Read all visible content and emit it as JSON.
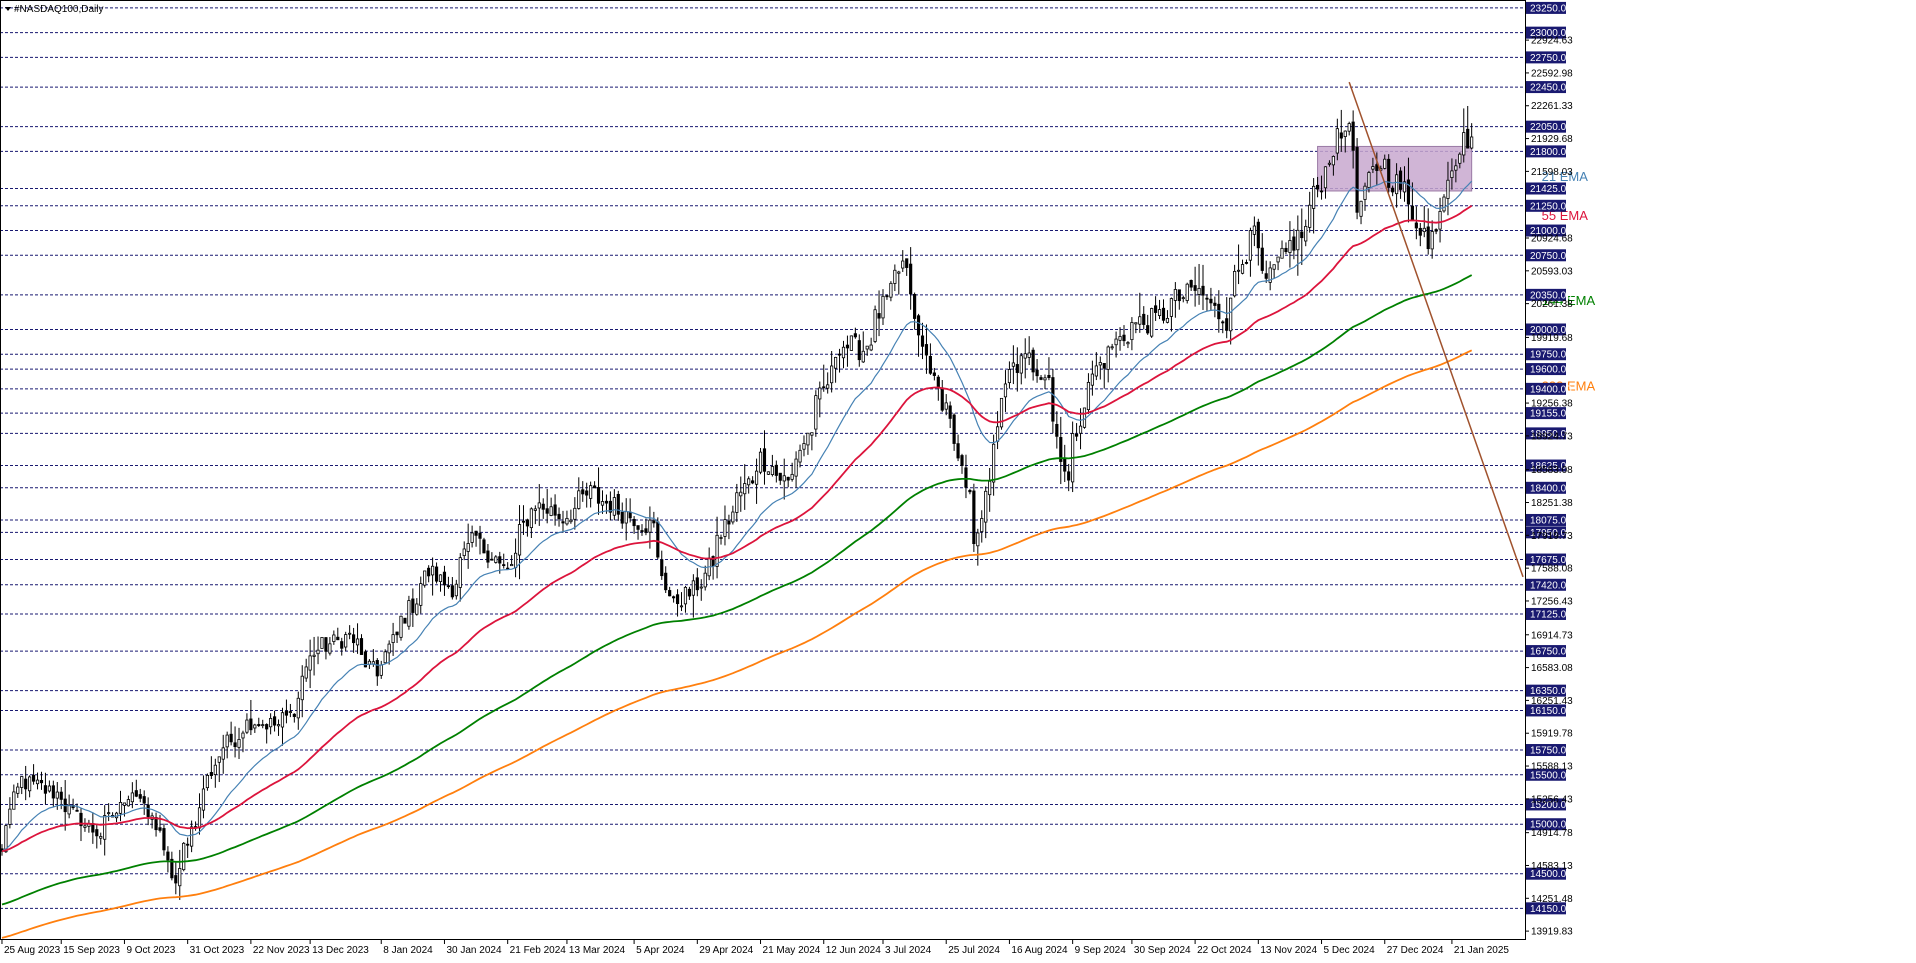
{
  "chart_data": {
    "type": "candlestick",
    "title": "#NASDAQ100,Daily",
    "ylim": [
      13830,
      23330
    ],
    "xlim": [
      "2023-08-25",
      "2025-02-14"
    ],
    "background": "#ffffff",
    "grid": "horizontal at marked levels (dashed)",
    "price_levels": [
      23250,
      23000,
      22750,
      22450,
      22050,
      21800,
      21425,
      21250,
      21000,
      20750,
      20350,
      20000,
      19750,
      19600,
      19400,
      19155,
      18950,
      18625,
      18400,
      18075,
      17950,
      17675,
      17420,
      17125,
      16750,
      16350,
      16150,
      15750,
      15500,
      15200,
      15000,
      14500,
      14150
    ],
    "y_tick_labels": [
      "22924.63",
      "22592.98",
      "22261.33",
      "21929.68",
      "21598.03",
      "20924.68",
      "20593.03",
      "20261.38",
      "19919.68",
      "19256.38",
      "18924.73",
      "18583.08",
      "18251.38",
      "17919.73",
      "17588.08",
      "17256.43",
      "16914.73",
      "16583.08",
      "16251.43",
      "15919.78",
      "15588.13",
      "15256.43",
      "14914.78",
      "14583.13",
      "14251.48",
      "13919.83"
    ],
    "x_tick_labels": [
      "25 Aug 2023",
      "15 Sep 2023",
      "9 Oct 2023",
      "31 Oct 2023",
      "22 Nov 2023",
      "13 Dec 2023",
      "8 Jan 2024",
      "30 Jan 2024",
      "21 Feb 2024",
      "13 Mar 2024",
      "5 Apr 2024",
      "29 Apr 2024",
      "21 May 2024",
      "12 Jun 2024",
      "3 Jul 2024",
      "25 Jul 2024",
      "16 Aug 2024",
      "9 Sep 2024",
      "30 Sep 2024",
      "22 Oct 2024",
      "13 Nov 2024",
      "5 Dec 2024",
      "27 Dec 2024",
      "21 Jan 2025"
    ],
    "close_anchors": [
      [
        "2023-08-25",
        14700
      ],
      [
        "2023-09-01",
        15450
      ],
      [
        "2023-09-15",
        15300
      ],
      [
        "2023-09-20",
        15100
      ],
      [
        "2023-09-29",
        14900
      ],
      [
        "2023-10-11",
        15350
      ],
      [
        "2023-10-20",
        14950
      ],
      [
        "2023-10-26",
        14400
      ],
      [
        "2023-11-02",
        15050
      ],
      [
        "2023-11-10",
        15700
      ],
      [
        "2023-11-22",
        16050
      ],
      [
        "2023-12-01",
        16000
      ],
      [
        "2023-12-06",
        16100
      ],
      [
        "2023-12-14",
        16750
      ],
      [
        "2023-12-27",
        16900
      ],
      [
        "2024-01-05",
        16500
      ],
      [
        "2024-01-12",
        16900
      ],
      [
        "2024-01-24",
        17550
      ],
      [
        "2024-02-01",
        17400
      ],
      [
        "2024-02-09",
        17900
      ],
      [
        "2024-02-21",
        17550
      ],
      [
        "2024-03-01",
        18250
      ],
      [
        "2024-03-12",
        18100
      ],
      [
        "2024-03-21",
        18350
      ],
      [
        "2024-04-02",
        18150
      ],
      [
        "2024-04-12",
        18000
      ],
      [
        "2024-04-19",
        17200
      ],
      [
        "2024-04-30",
        17450
      ],
      [
        "2024-05-10",
        18150
      ],
      [
        "2024-05-21",
        18700
      ],
      [
        "2024-05-30",
        18450
      ],
      [
        "2024-06-07",
        19000
      ],
      [
        "2024-06-18",
        19850
      ],
      [
        "2024-06-26",
        19800
      ],
      [
        "2024-07-10",
        20650
      ],
      [
        "2024-07-17",
        19800
      ],
      [
        "2024-07-26",
        19150
      ],
      [
        "2024-08-05",
        17900
      ],
      [
        "2024-08-09",
        18400
      ],
      [
        "2024-08-16",
        19550
      ],
      [
        "2024-08-23",
        19700
      ],
      [
        "2024-08-30",
        19550
      ],
      [
        "2024-09-06",
        18450
      ],
      [
        "2024-09-13",
        19400
      ],
      [
        "2024-09-20",
        19750
      ],
      [
        "2024-09-30",
        20050
      ],
      [
        "2024-10-08",
        20100
      ],
      [
        "2024-10-15",
        20300
      ],
      [
        "2024-10-22",
        20400
      ],
      [
        "2024-11-01",
        20100
      ],
      [
        "2024-11-11",
        21100
      ],
      [
        "2024-11-15",
        20400
      ],
      [
        "2024-11-22",
        20750
      ],
      [
        "2024-11-29",
        21000
      ],
      [
        "2024-12-06",
        21600
      ],
      [
        "2024-12-16",
        22200
      ],
      [
        "2024-12-18",
        21200
      ],
      [
        "2024-12-26",
        21700
      ],
      [
        "2025-01-03",
        21400
      ],
      [
        "2025-01-10",
        21000
      ],
      [
        "2025-01-13",
        20800
      ],
      [
        "2025-01-17",
        21400
      ],
      [
        "2025-01-24",
        21900
      ],
      [
        "2025-01-28",
        21950
      ]
    ],
    "ema_final_values": [
      {
        "name": "21 EMA",
        "value": 21500
      },
      {
        "name": "55 EMA",
        "value": 21250
      },
      {
        "name": "144 EMA",
        "value": 20550
      },
      {
        "name": "233 EMA",
        "value": 19790
      }
    ],
    "annotations": {
      "trendline": {
        "from": [
          "2024-12-16",
          22500
        ],
        "to": [
          "2025-02-14",
          17500
        ],
        "color": "#a0522d"
      },
      "zone": {
        "from_date": "2024-12-04",
        "to_date": "2025-01-28",
        "low": 21400,
        "high": 21850,
        "color": "#c8a8cf"
      }
    },
    "colors": {
      "candle": "#000000",
      "ema21": "#4682b4",
      "ema55": "#dc143c",
      "ema144": "#008000",
      "ema233": "#ff7f0e",
      "level_line": "#191970",
      "level_label_bg": "#191970",
      "axis": "#000000"
    }
  },
  "ema_labels": [
    {
      "key": "ema21",
      "text": "21 EMA"
    },
    {
      "key": "ema55",
      "text": "55 EMA"
    },
    {
      "key": "ema144",
      "text": "144 EMA"
    },
    {
      "key": "ema233",
      "text": "233 EMA"
    }
  ]
}
